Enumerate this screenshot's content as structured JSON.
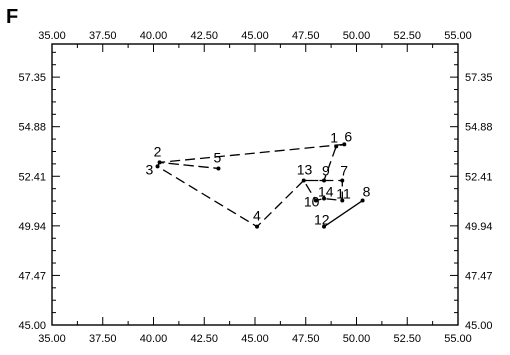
{
  "panel_label": "F",
  "chart_data": {
    "type": "scatter",
    "title": "",
    "xlabel": "",
    "ylabel": "",
    "xlim": [
      35.0,
      55.0
    ],
    "ylim": [
      45.0,
      59.0
    ],
    "grid": false,
    "x_ticks": [
      "35.00",
      "37.50",
      "40.00",
      "42.50",
      "45.00",
      "47.50",
      "50.00",
      "52.50",
      "55.00"
    ],
    "y_ticks": [
      "45.00",
      "47.47",
      "49.94",
      "52.41",
      "54.88",
      "57.35"
    ],
    "points": [
      {
        "id": 1,
        "label": "1",
        "x": 49.0,
        "y": 53.9
      },
      {
        "id": 2,
        "label": "2",
        "x": 40.3,
        "y": 53.1
      },
      {
        "id": 3,
        "label": "3",
        "x": 40.2,
        "y": 52.9
      },
      {
        "id": 4,
        "label": "4",
        "x": 45.1,
        "y": 49.9
      },
      {
        "id": 5,
        "label": "5",
        "x": 43.2,
        "y": 52.8
      },
      {
        "id": 6,
        "label": "6",
        "x": 49.4,
        "y": 54.0
      },
      {
        "id": 7,
        "label": "7",
        "x": 49.3,
        "y": 52.2
      },
      {
        "id": 8,
        "label": "8",
        "x": 50.3,
        "y": 51.2
      },
      {
        "id": 9,
        "label": "9",
        "x": 48.4,
        "y": 52.2
      },
      {
        "id": 10,
        "label": "10",
        "x": 48.0,
        "y": 51.2
      },
      {
        "id": 11,
        "label": "11",
        "x": 49.3,
        "y": 51.2
      },
      {
        "id": 12,
        "label": "12",
        "x": 48.4,
        "y": 49.9
      },
      {
        "id": 13,
        "label": "13",
        "x": 47.4,
        "y": 52.2
      },
      {
        "id": 14,
        "label": "14",
        "x": 48.4,
        "y": 51.3
      }
    ],
    "dashed_path": [
      6,
      2,
      5,
      2,
      3,
      4,
      13,
      9,
      7,
      11,
      14,
      10,
      13,
      9,
      1,
      6
    ],
    "solid_path": [
      12,
      8
    ]
  }
}
